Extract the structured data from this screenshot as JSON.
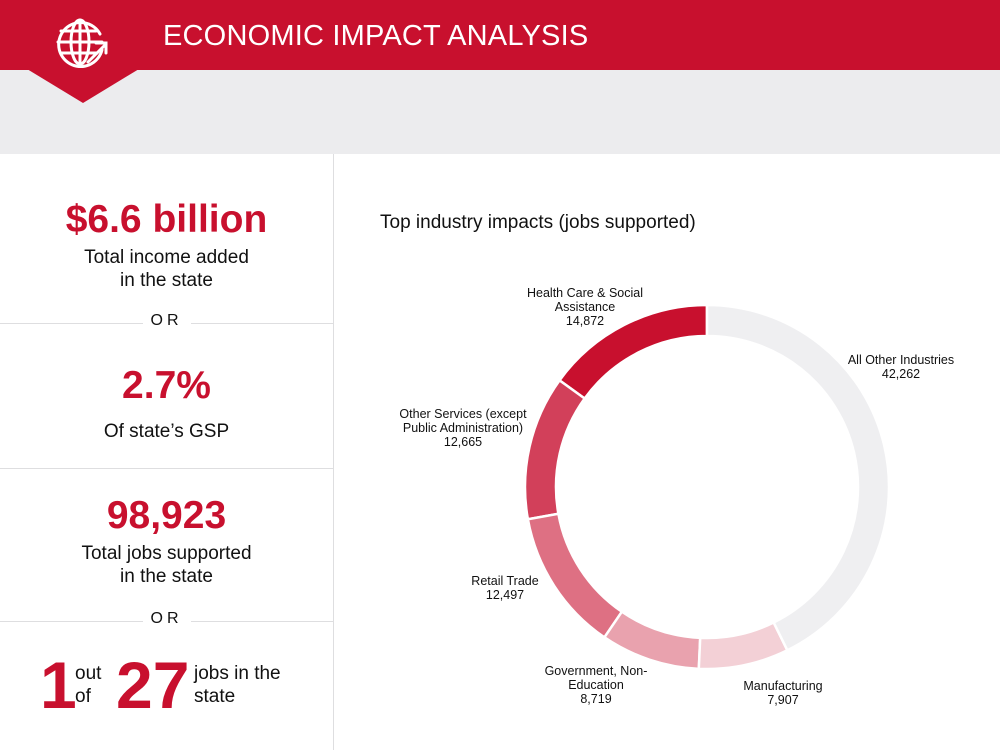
{
  "header": {
    "title": "ECONOMIC IMPACT ANALYSIS",
    "icon": "globe-arrow-icon",
    "color": "#c8102e"
  },
  "stats": {
    "income": {
      "value": "$6.6 billion",
      "caption_line1": "Total income added",
      "caption_line2": "in the state"
    },
    "or1": "OR",
    "gsp": {
      "value": "2.7%",
      "caption": "Of state’s GSP"
    },
    "jobs": {
      "value": "98,923",
      "caption_line1": "Total jobs supported",
      "caption_line2": "in the state"
    },
    "or2": "OR",
    "ratio": {
      "num1": "1",
      "word1a": "out",
      "word1b": "of",
      "num2": "27",
      "word2a": "jobs in the",
      "word2b": "state"
    }
  },
  "chart_data": {
    "type": "pie",
    "donut": true,
    "title": "Top industry impacts (jobs supported)",
    "slices": [
      {
        "label_lines": [
          "Health Care & Social",
          "Assistance"
        ],
        "value": 14872,
        "value_label": "14,872",
        "color": "#c8102e"
      },
      {
        "label_lines": [
          "Other Services (except",
          "Public Administration)"
        ],
        "value": 12665,
        "value_label": "12,665",
        "color": "#d2405a"
      },
      {
        "label_lines": [
          "Retail Trade"
        ],
        "value": 12497,
        "value_label": "12,497",
        "color": "#de7083"
      },
      {
        "label_lines": [
          "Government, Non-",
          "Education"
        ],
        "value": 8719,
        "value_label": "8,719",
        "color": "#e9a2ae"
      },
      {
        "label_lines": [
          "Manufacturing"
        ],
        "value": 7907,
        "value_label": "7,907",
        "color": "#f3d0d6"
      },
      {
        "label_lines": [
          "All Other Industries"
        ],
        "value": 42262,
        "value_label": "42,262",
        "color": "#efeff1"
      }
    ]
  }
}
